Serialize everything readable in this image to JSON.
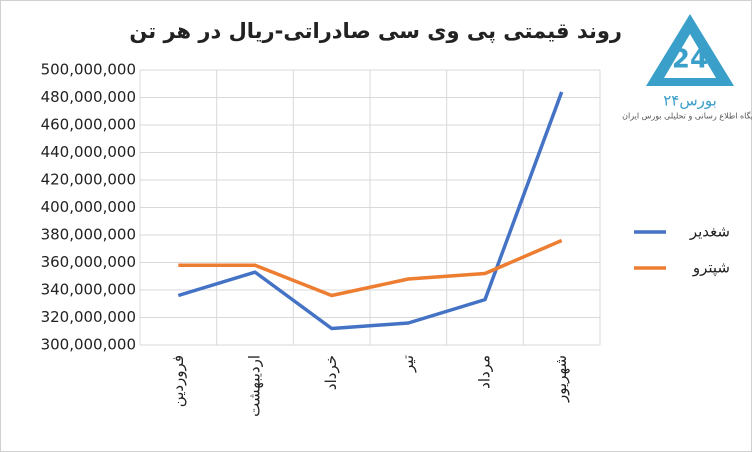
{
  "chart_data": {
    "type": "line",
    "title": "روند قیمتی پی وی سی صادراتی-ریال در هر تن",
    "logo_text": "بورس۲۴",
    "logo_subtitle": "پایگاه اطلاع رسانی و تحلیلی بورس ایران",
    "categories": [
      "فروردین",
      "اردیبهشت",
      "خرداد",
      "تیر",
      "مرداد",
      "شهریور"
    ],
    "series": [
      {
        "name": "شغدیر",
        "color": "#4472c4",
        "values": [
          336000000,
          353000000,
          312000000,
          316000000,
          333000000,
          484000000
        ]
      },
      {
        "name": "شپترو",
        "color": "#ed7d31",
        "values": [
          358000000,
          358000000,
          336000000,
          348000000,
          352000000,
          376000000
        ]
      }
    ],
    "ylim": [
      300000000,
      500000000
    ],
    "yticks": [
      {
        "value": 300000000,
        "label": "300,000,000"
      },
      {
        "value": 320000000,
        "label": "320,000,000"
      },
      {
        "value": 340000000,
        "label": "340,000,000"
      },
      {
        "value": 360000000,
        "label": "360,000,000"
      },
      {
        "value": 380000000,
        "label": "380,000,000"
      },
      {
        "value": 400000000,
        "label": "400,000,000"
      },
      {
        "value": 420000000,
        "label": "420,000,000"
      },
      {
        "value": 440000000,
        "label": "440,000,000"
      },
      {
        "value": 460000000,
        "label": "460,000,000"
      },
      {
        "value": 480000000,
        "label": "480,000,000"
      },
      {
        "value": 500000000,
        "label": "500,000,000"
      }
    ],
    "grid": true,
    "legend": "right"
  }
}
